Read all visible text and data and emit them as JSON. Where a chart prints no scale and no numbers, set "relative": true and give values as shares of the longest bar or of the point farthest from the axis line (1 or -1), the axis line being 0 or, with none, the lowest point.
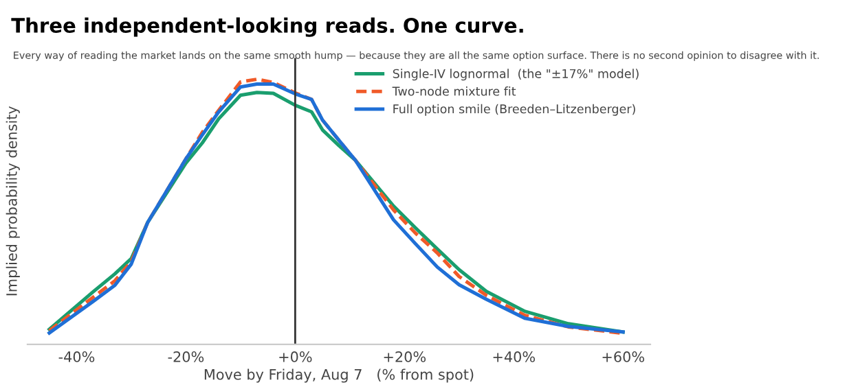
{
  "chart_data": {
    "type": "line",
    "title": "Three independent-looking reads. One curve.",
    "subtitle": "Every way of reading the market lands on the same smooth hump — because they are all the same option surface. There is no second opinion to disagree with it.",
    "xlabel": "Move by Friday, Aug 7   (% from spot)",
    "ylabel": "Implied probability density",
    "relative": true,
    "x": [
      -45,
      -37,
      -33,
      -30,
      -27,
      -20,
      -17,
      -14,
      -10,
      -7,
      -4,
      0,
      3,
      5,
      8,
      11,
      18,
      22,
      26,
      30,
      35,
      42,
      50,
      60
    ],
    "xlim": [
      -49,
      65
    ],
    "xticks": [
      {
        "value": -40,
        "label": "-40%"
      },
      {
        "value": -20,
        "label": "-20%"
      },
      {
        "value": 0,
        "label": "+0%"
      },
      {
        "value": 20,
        "label": "+20%"
      },
      {
        "value": 40,
        "label": "+40%"
      },
      {
        "value": 60,
        "label": "+60%"
      }
    ],
    "series": [
      {
        "name": "Single-IV lognormal  (the \"±17%\" model)",
        "color": "#1a9e6e",
        "line_style": "solid",
        "values": [
          0.057,
          0.198,
          0.266,
          0.324,
          0.46,
          0.684,
          0.76,
          0.851,
          0.94,
          0.95,
          0.947,
          0.902,
          0.877,
          0.809,
          0.75,
          0.695,
          0.522,
          0.44,
          0.36,
          0.282,
          0.2,
          0.125,
          0.078,
          0.047
        ]
      },
      {
        "name": "Two-node mixture fit",
        "color": "#f05a28",
        "line_style": "dashed",
        "values": [
          0.052,
          0.178,
          0.24,
          0.313,
          0.46,
          0.7,
          0.8,
          0.883,
          0.99,
          1,
          0.988,
          0.949,
          0.924,
          0.846,
          0.77,
          0.695,
          0.507,
          0.42,
          0.345,
          0.256,
          0.185,
          0.11,
          0.066,
          0.042
        ]
      },
      {
        "name": "Full option smile (Breeden–Litzenberger)",
        "color": "#1f6fd6",
        "line_style": "solid",
        "values": [
          0.043,
          0.162,
          0.223,
          0.303,
          0.46,
          0.7,
          0.79,
          0.877,
          0.971,
          0.982,
          0.982,
          0.945,
          0.924,
          0.846,
          0.77,
          0.695,
          0.47,
          0.38,
          0.292,
          0.225,
          0.17,
          0.099,
          0.068,
          0.047
        ]
      }
    ],
    "ref_lines": [
      {
        "axis": "x",
        "value": 0,
        "color": "#333333"
      }
    ],
    "grid": false,
    "legend": "top right",
    "marker": "none"
  }
}
